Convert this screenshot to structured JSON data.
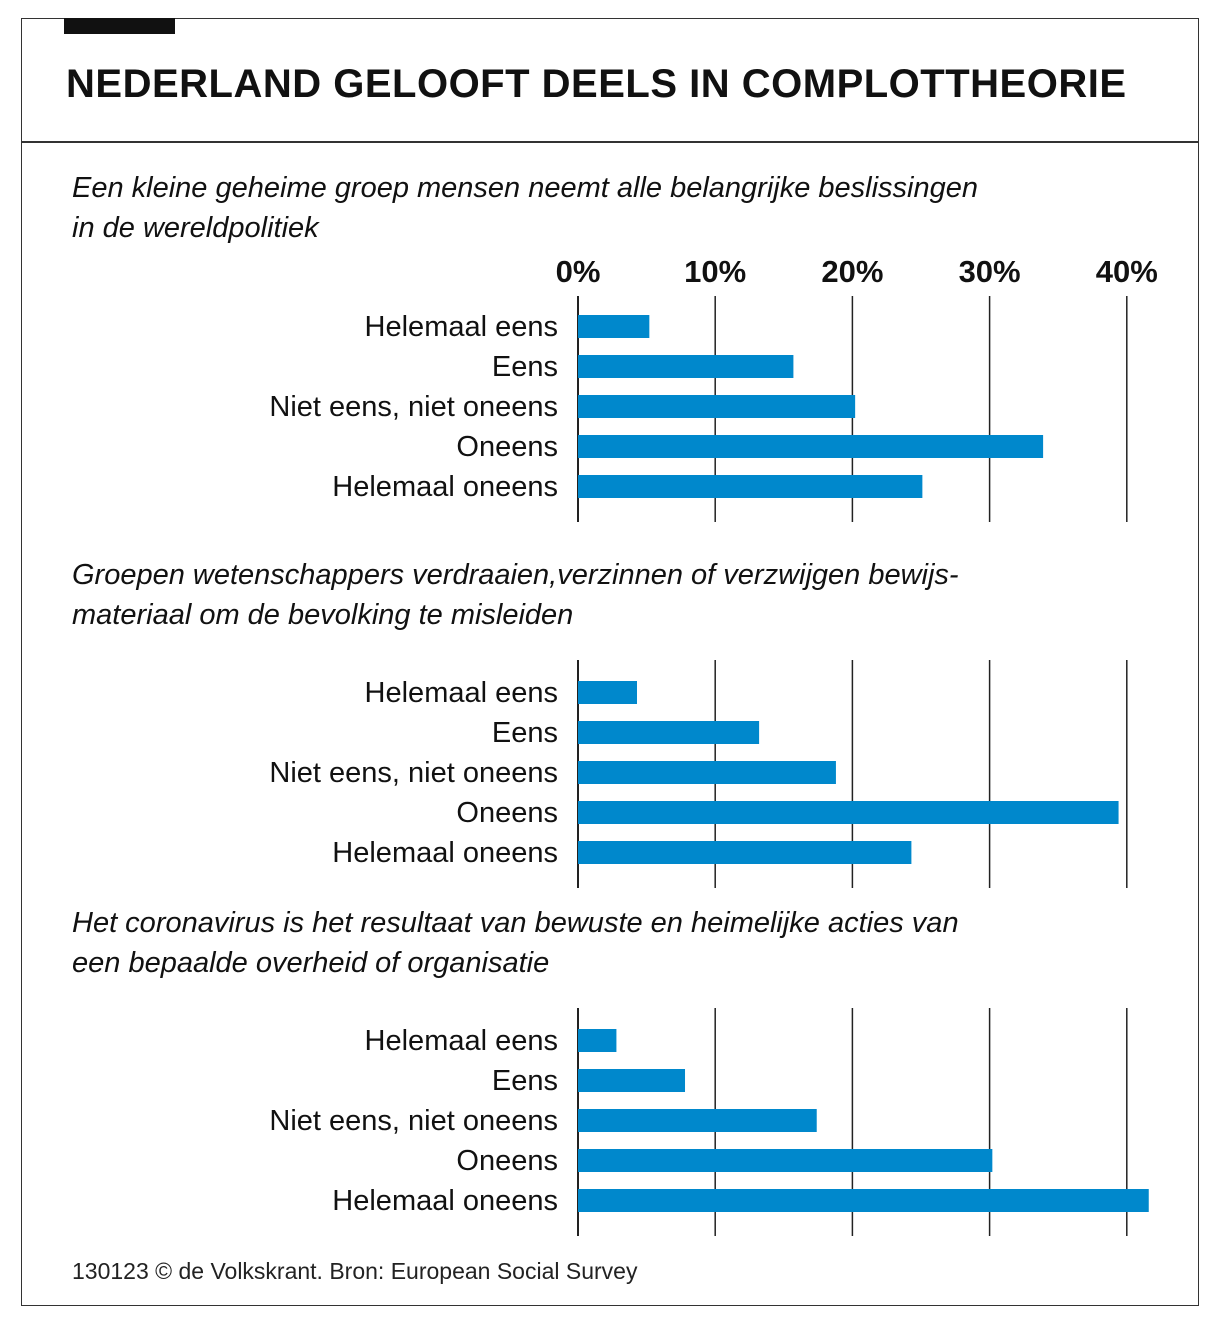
{
  "headline": "NEDERLAND GELOOFT DEELS IN COMPLOTTHEORIE",
  "source": "130123 © de Volkskrant. Bron: European Social Survey",
  "colors": {
    "bar": "#0088cc",
    "grid": "#222222",
    "text": "#111111"
  },
  "chart_data": {
    "type": "bar",
    "orientation": "horizontal",
    "x_ticks": [
      "0%",
      "10%",
      "20%",
      "30%",
      "40%"
    ],
    "xlim": [
      0,
      40
    ],
    "grid": true,
    "categories": [
      "Helemaal eens",
      "Eens",
      "Niet eens, niet oneens",
      "Oneens",
      "Helemaal oneens"
    ],
    "panels": [
      {
        "title_lines": [
          "Een kleine geheime groep mensen neemt alle belangrijke beslissingen",
          "in de wereldpolitiek"
        ],
        "values": [
          5.2,
          15.7,
          20.2,
          33.9,
          25.1
        ]
      },
      {
        "title_lines": [
          "Groepen wetenschappers verdraaien,verzinnen of verzwijgen bewijs-",
          "materiaal om de bevolking te misleiden"
        ],
        "values": [
          4.3,
          13.2,
          18.8,
          39.4,
          24.3
        ]
      },
      {
        "title_lines": [
          "Het coronavirus is het resultaat van bewuste en heimelijke acties van",
          "een bepaalde overheid of organisatie"
        ],
        "values": [
          2.8,
          7.8,
          17.4,
          30.2,
          41.6
        ]
      }
    ]
  }
}
